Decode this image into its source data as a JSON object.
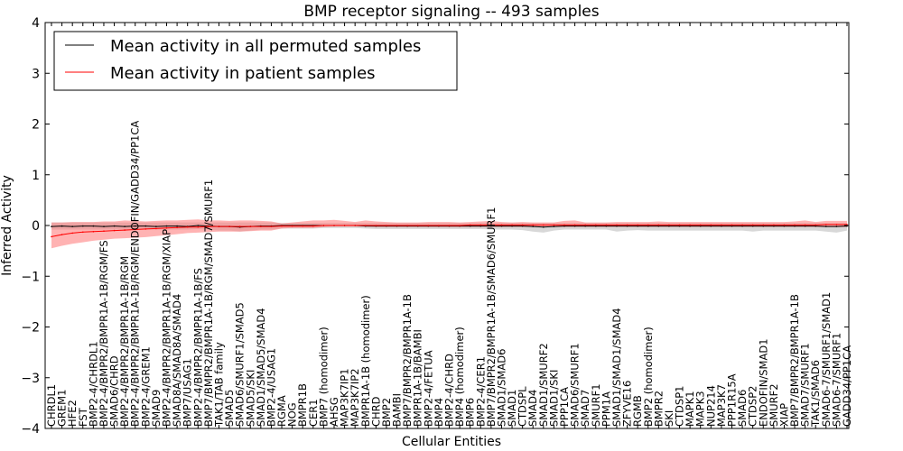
{
  "chart_data": {
    "type": "line",
    "title": "BMP receptor signaling -- 493 samples",
    "xlabel": "Cellular Entities",
    "ylabel": "Inferred Activity",
    "ylim": [
      -4,
      4
    ],
    "yticks": [
      -4,
      -3,
      -2,
      -1,
      0,
      1,
      2,
      3,
      4
    ],
    "grid": false,
    "legend_position": "top-left",
    "colors": {
      "permuted": "#000000",
      "patient": "#ff0000",
      "permuted_band": "#c8c8c8",
      "patient_band": "#ff8080"
    },
    "categories": [
      "CHRDL1",
      "GREM1",
      "HFE2",
      "FST",
      "BMP2-4/CHRDL1",
      "BMP2-4/BMPR2/BMPR1A-1B/RGM/FS",
      "SMAD6/CHRD",
      "BMP2-4/BMPR2/BMPR1A-1B/RGM",
      "BMP2-4/BMPR2/BMPR1A-1B/RGM/ENDOFIN/GADD34/PP1CA",
      "BMP2-4/GREM1",
      "SMAD9",
      "BMP2-4/BMPR2/BMPR1A-1B/RGM/XIAP",
      "SMAD8A/SMAD8A/SMAD4",
      "BMP7/USAG1",
      "BMP2-4/BMPR2/BMPR1A-1B/FS",
      "BMP7/BMPR2/BMPR1A-1B/RGM/SMAD7/SMURF1",
      "TAK1/TAB family",
      "SMAD5",
      "SMAD6/SMURF1/SMAD5",
      "SMAD5/SKI",
      "SMAD1/SMAD5/SMAD4",
      "BMP2-4/USAG1",
      "RGMA",
      "NOG",
      "BMPR1B",
      "CER1",
      "BMP7 (homodimer)",
      "AHSG",
      "MAP3K7IP1",
      "MAP3K7IP2",
      "BMPR1A-1B (homodimer)",
      "CHRD",
      "BMP2",
      "BAMBI",
      "BMP7/BMPR2/BMPR1A-1B",
      "BMPR1A-1B/BAMBI",
      "BMP2-4/FETUA",
      "BMP4",
      "BMP2-4/CHRD",
      "BMP4 (homodimer)",
      "BMP6",
      "BMP2-4/CER1",
      "BMP7/BMPR2/BMPR1A-1B/SMAD6/SMURF1",
      "SMAD1/SMAD6",
      "SMAD1",
      "CTDSPL",
      "SMAD4",
      "SMAD1/SMURF2",
      "SMAD1/SKI",
      "PPP1CA",
      "SMAD6/SMURF1",
      "SMAD7",
      "SMURF1",
      "PPM1A",
      "SMAD1/SMAD1/SMAD4",
      "ZFYVE16",
      "RGMB",
      "BMP2 (homodimer)",
      "BMPR2",
      "SKI",
      "CTDSP1",
      "MAPK1",
      "MAPK3",
      "NUP214",
      "MAP3K7",
      "PPP1R15A",
      "SMAD6",
      "CTDSP2",
      "ENDOFIN/SMAD1",
      "SMURF2",
      "XIAP",
      "BMP7/BMPR2/BMPR1A-1B",
      "SMAD7/SMURF1",
      "TAK1/SMAD6",
      "SMAD6-7/SMURF1/SMAD1",
      "SMAD6-7/SMURF1",
      "GADD34/PP1CA"
    ],
    "series": [
      {
        "name": "Mean activity in all permuted samples",
        "color": "#000000",
        "values": [
          -0.02,
          -0.01,
          -0.02,
          -0.01,
          -0.01,
          -0.02,
          -0.01,
          -0.02,
          -0.01,
          -0.01,
          -0.02,
          -0.01,
          -0.01,
          -0.02,
          0.0,
          -0.01,
          -0.02,
          -0.02,
          -0.03,
          -0.02,
          -0.01,
          -0.01,
          0.0,
          0.0,
          0.0,
          0.0,
          0.0,
          0.0,
          0.0,
          0.0,
          -0.01,
          -0.01,
          -0.01,
          -0.01,
          -0.01,
          -0.01,
          -0.01,
          -0.01,
          -0.01,
          -0.01,
          -0.01,
          -0.01,
          -0.01,
          -0.01,
          -0.01,
          -0.01,
          -0.02,
          -0.03,
          -0.02,
          -0.01,
          -0.01,
          -0.01,
          -0.01,
          -0.01,
          -0.01,
          -0.01,
          -0.01,
          -0.01,
          -0.01,
          -0.01,
          -0.01,
          -0.01,
          -0.01,
          -0.01,
          -0.01,
          -0.01,
          -0.01,
          -0.01,
          -0.01,
          -0.01,
          -0.01,
          -0.01,
          -0.01,
          -0.01,
          -0.02,
          -0.02,
          -0.01
        ],
        "lower": [
          -0.08,
          -0.08,
          -0.08,
          -0.08,
          -0.08,
          -0.08,
          -0.08,
          -0.08,
          -0.08,
          -0.08,
          -0.08,
          -0.08,
          -0.08,
          -0.08,
          -0.07,
          -0.08,
          -0.1,
          -0.1,
          -0.12,
          -0.1,
          -0.08,
          -0.08,
          -0.06,
          -0.06,
          -0.06,
          -0.06,
          -0.05,
          -0.05,
          -0.05,
          -0.05,
          -0.06,
          -0.07,
          -0.07,
          -0.07,
          -0.07,
          -0.07,
          -0.07,
          -0.07,
          -0.07,
          -0.07,
          -0.07,
          -0.07,
          -0.08,
          -0.08,
          -0.08,
          -0.09,
          -0.12,
          -0.14,
          -0.1,
          -0.08,
          -0.08,
          -0.08,
          -0.08,
          -0.08,
          -0.12,
          -0.1,
          -0.09,
          -0.1,
          -0.1,
          -0.1,
          -0.1,
          -0.1,
          -0.1,
          -0.1,
          -0.1,
          -0.1,
          -0.1,
          -0.12,
          -0.1,
          -0.1,
          -0.1,
          -0.1,
          -0.1,
          -0.1,
          -0.12,
          -0.14,
          -0.1
        ],
        "upper": [
          0.06,
          0.06,
          0.06,
          0.06,
          0.06,
          0.06,
          0.06,
          0.06,
          0.06,
          0.06,
          0.06,
          0.06,
          0.06,
          0.06,
          0.06,
          0.06,
          0.06,
          0.06,
          0.06,
          0.06,
          0.06,
          0.06,
          0.05,
          0.05,
          0.05,
          0.05,
          0.05,
          0.05,
          0.05,
          0.05,
          0.05,
          0.05,
          0.05,
          0.05,
          0.05,
          0.05,
          0.05,
          0.05,
          0.05,
          0.05,
          0.05,
          0.05,
          0.05,
          0.05,
          0.05,
          0.05,
          0.05,
          0.05,
          0.05,
          0.05,
          0.05,
          0.05,
          0.05,
          0.05,
          0.05,
          0.05,
          0.05,
          0.05,
          0.05,
          0.05,
          0.05,
          0.05,
          0.05,
          0.05,
          0.05,
          0.05,
          0.05,
          0.05,
          0.05,
          0.05,
          0.05,
          0.05,
          0.05,
          0.05,
          0.05,
          0.05,
          0.05
        ]
      },
      {
        "name": "Mean activity in patient samples",
        "color": "#ff0000",
        "values": [
          -0.22,
          -0.18,
          -0.15,
          -0.13,
          -0.12,
          -0.11,
          -0.1,
          -0.09,
          -0.08,
          -0.07,
          -0.06,
          -0.05,
          -0.04,
          -0.03,
          -0.03,
          -0.02,
          -0.02,
          -0.02,
          -0.02,
          -0.02,
          -0.02,
          -0.02,
          -0.01,
          -0.01,
          -0.01,
          -0.01,
          0.0,
          0.0,
          0.0,
          0.0,
          0.0,
          0.0,
          0.0,
          0.0,
          0.0,
          0.0,
          0.0,
          0.0,
          0.0,
          0.0,
          0.01,
          0.01,
          0.01,
          0.01,
          0.01,
          0.01,
          0.01,
          0.01,
          0.01,
          0.01,
          0.01,
          0.01,
          0.01,
          0.01,
          0.01,
          0.01,
          0.01,
          0.01,
          0.01,
          0.01,
          0.01,
          0.01,
          0.01,
          0.01,
          0.01,
          0.01,
          0.01,
          0.01,
          0.01,
          0.01,
          0.01,
          0.01,
          0.01,
          0.01,
          0.02,
          0.02,
          0.02
        ],
        "lower": [
          -0.45,
          -0.4,
          -0.36,
          -0.33,
          -0.3,
          -0.28,
          -0.26,
          -0.25,
          -0.24,
          -0.23,
          -0.21,
          -0.19,
          -0.17,
          -0.15,
          -0.14,
          -0.13,
          -0.12,
          -0.12,
          -0.12,
          -0.11,
          -0.1,
          -0.1,
          -0.06,
          -0.05,
          -0.05,
          -0.05,
          -0.03,
          -0.02,
          -0.02,
          -0.02,
          -0.02,
          -0.03,
          -0.03,
          -0.03,
          -0.03,
          -0.03,
          -0.03,
          -0.03,
          -0.03,
          -0.03,
          -0.03,
          -0.03,
          -0.03,
          -0.03,
          -0.03,
          -0.03,
          -0.03,
          -0.03,
          -0.03,
          -0.03,
          -0.03,
          -0.03,
          -0.03,
          -0.03,
          -0.03,
          -0.03,
          -0.03,
          -0.03,
          -0.03,
          -0.03,
          -0.03,
          -0.03,
          -0.03,
          -0.03,
          -0.03,
          -0.03,
          -0.03,
          -0.03,
          -0.03,
          -0.03,
          -0.03,
          -0.03,
          -0.03,
          -0.03,
          -0.03,
          -0.03,
          -0.03
        ],
        "upper": [
          0.06,
          0.06,
          0.07,
          0.07,
          0.07,
          0.08,
          0.08,
          0.1,
          0.09,
          0.08,
          0.09,
          0.1,
          0.1,
          0.11,
          0.12,
          0.1,
          0.1,
          0.09,
          0.1,
          0.1,
          0.09,
          0.08,
          0.04,
          0.06,
          0.08,
          0.1,
          0.1,
          0.11,
          0.09,
          0.07,
          0.1,
          0.08,
          0.07,
          0.06,
          0.06,
          0.06,
          0.07,
          0.07,
          0.07,
          0.06,
          0.07,
          0.08,
          0.09,
          0.07,
          0.06,
          0.07,
          0.06,
          0.06,
          0.06,
          0.09,
          0.1,
          0.06,
          0.06,
          0.06,
          0.07,
          0.07,
          0.07,
          0.07,
          0.08,
          0.07,
          0.07,
          0.07,
          0.07,
          0.07,
          0.07,
          0.07,
          0.07,
          0.07,
          0.07,
          0.07,
          0.07,
          0.08,
          0.1,
          0.07,
          0.09,
          0.09,
          0.09
        ]
      }
    ]
  }
}
